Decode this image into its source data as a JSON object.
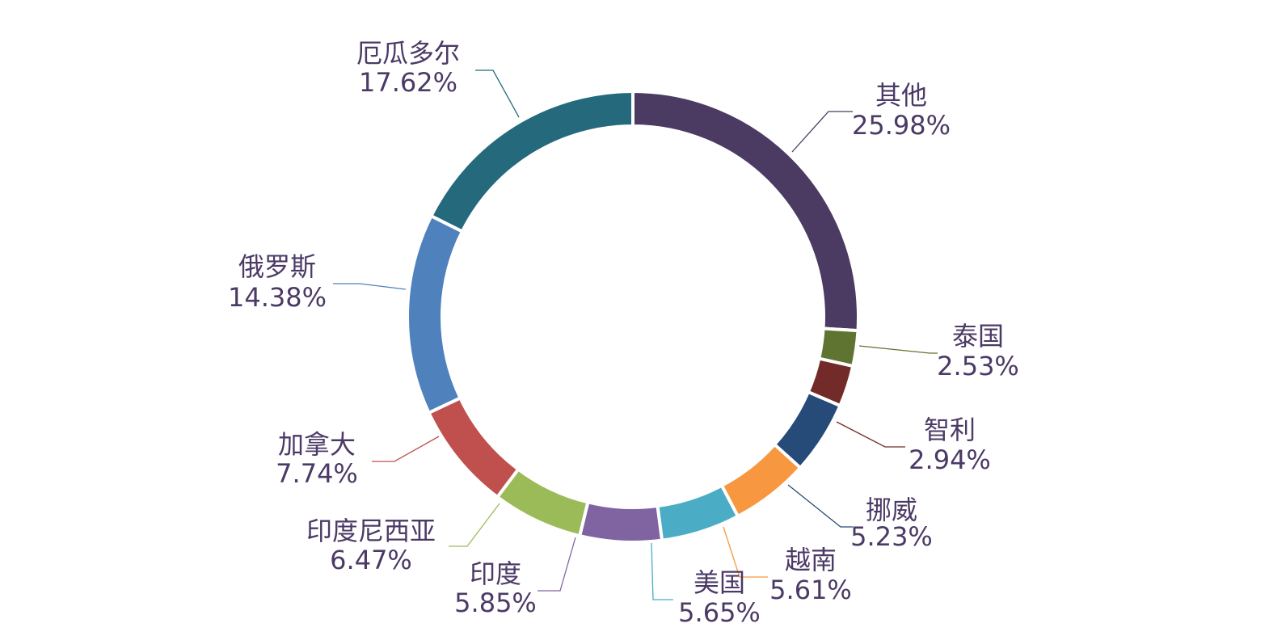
{
  "chart_data": {
    "type": "pie",
    "variant": "donut",
    "start_angle_deg": 0,
    "direction": "clockwise",
    "slices": [
      {
        "label": "其他",
        "value": 25.98,
        "value_text": "25.98%",
        "color": "#4b3a62"
      },
      {
        "label": "泰国",
        "value": 2.53,
        "value_text": "2.53%",
        "color": "#5f7431"
      },
      {
        "label": "智利",
        "value": 2.94,
        "value_text": "2.94%",
        "color": "#722b28"
      },
      {
        "label": "挪威",
        "value": 5.23,
        "value_text": "5.23%",
        "color": "#264b78"
      },
      {
        "label": "越南",
        "value": 5.61,
        "value_text": "5.61%",
        "color": "#f79840"
      },
      {
        "label": "美国",
        "value": 5.65,
        "value_text": "5.65%",
        "color": "#4bacc6"
      },
      {
        "label": "印度",
        "value": 5.85,
        "value_text": "5.85%",
        "color": "#8064a2"
      },
      {
        "label": "印度尼西亚",
        "value": 6.47,
        "value_text": "6.47%",
        "color": "#9bbb59"
      },
      {
        "label": "加拿大",
        "value": 7.74,
        "value_text": "7.74%",
        "color": "#c0504d"
      },
      {
        "label": "俄罗斯",
        "value": 14.38,
        "value_text": "14.38%",
        "color": "#4f81bd"
      },
      {
        "label": "厄瓜多尔",
        "value": 17.62,
        "value_text": "17.62%",
        "color": "#246a7c"
      }
    ],
    "label_color": "#4b3a66"
  }
}
